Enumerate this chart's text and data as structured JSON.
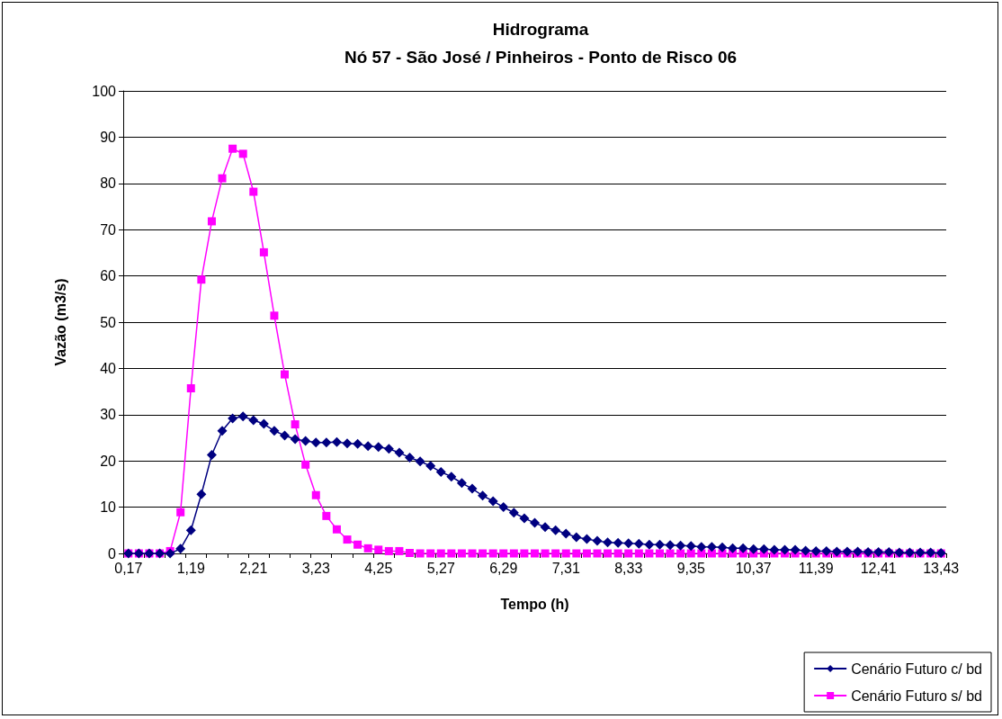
{
  "chart_data": {
    "type": "line",
    "title": "Hidrograma",
    "subtitle": "Nó 57 - São José / Pinheiros - Ponto de Risco 06",
    "xlabel": "Tempo (h)",
    "ylabel": "Vazão (m3/s)",
    "categories": [
      "0,17",
      null,
      null,
      null,
      null,
      null,
      "1,19",
      null,
      null,
      null,
      null,
      null,
      "2,21",
      null,
      null,
      null,
      null,
      null,
      "3,23",
      null,
      null,
      null,
      null,
      null,
      "4,25",
      null,
      null,
      null,
      null,
      null,
      "5,27",
      null,
      null,
      null,
      null,
      null,
      "6,29",
      null,
      null,
      null,
      null,
      null,
      "7,31",
      null,
      null,
      null,
      null,
      null,
      "8,33",
      null,
      null,
      null,
      null,
      null,
      "9,35",
      null,
      null,
      null,
      null,
      null,
      "10,37",
      null,
      null,
      null,
      null,
      null,
      "11,39",
      null,
      null,
      null,
      null,
      null,
      "12,41",
      null,
      null,
      null,
      null,
      null,
      "13,43"
    ],
    "series": [
      {
        "name": "Cenário Futuro c/ bd",
        "color": "#000080",
        "marker": "diamond",
        "values": [
          0,
          0,
          0,
          0,
          0,
          1.0,
          5.0,
          12.8,
          21.3,
          26.5,
          29.2,
          29.6,
          28.8,
          28.0,
          26.5,
          25.5,
          24.7,
          24.3,
          24.0,
          24.0,
          24.1,
          23.8,
          23.7,
          23.2,
          23.0,
          22.6,
          21.8,
          20.7,
          19.9,
          18.9,
          17.6,
          16.6,
          15.2,
          14.0,
          12.5,
          11.3,
          10.0,
          8.8,
          7.6,
          6.6,
          5.7,
          5.0,
          4.3,
          3.5,
          3.1,
          2.7,
          2.4,
          2.3,
          2.2,
          2.1,
          1.9,
          1.9,
          1.8,
          1.7,
          1.6,
          1.4,
          1.4,
          1.3,
          1.1,
          1.1,
          0.9,
          0.9,
          0.8,
          0.8,
          0.8,
          0.6,
          0.5,
          0.5,
          0.4,
          0.4,
          0.4,
          0.3,
          0.3,
          0.3,
          0.2,
          0.2,
          0.2,
          0.2,
          0.1
        ]
      },
      {
        "name": "Cenário Futuro s/ bd",
        "color": "#ff00ff",
        "marker": "square",
        "values": [
          0,
          0,
          0,
          0,
          0.5,
          8.9,
          35.7,
          59.2,
          71.8,
          81.1,
          87.5,
          86.4,
          78.2,
          65.1,
          51.4,
          38.7,
          27.9,
          19.2,
          12.6,
          8.1,
          5.2,
          3.0,
          1.9,
          1.1,
          0.8,
          0.5,
          0.5,
          0.1,
          0,
          0,
          0,
          0,
          0,
          0,
          0,
          0,
          0,
          0,
          0,
          0,
          0,
          0,
          0,
          0,
          0,
          0,
          0,
          0,
          0,
          0,
          0,
          0,
          0,
          0,
          0,
          0,
          0,
          0,
          0,
          0,
          0,
          0,
          0,
          0,
          0,
          0,
          0,
          0,
          0,
          0,
          0,
          0,
          0,
          0,
          0,
          0,
          0,
          0,
          0
        ]
      }
    ],
    "ylim": [
      0,
      100
    ],
    "yticks": [
      0,
      10,
      20,
      30,
      40,
      50,
      60,
      70,
      80,
      90,
      100
    ],
    "grid": "y",
    "legend": "bottom right",
    "line_style": "solid"
  }
}
